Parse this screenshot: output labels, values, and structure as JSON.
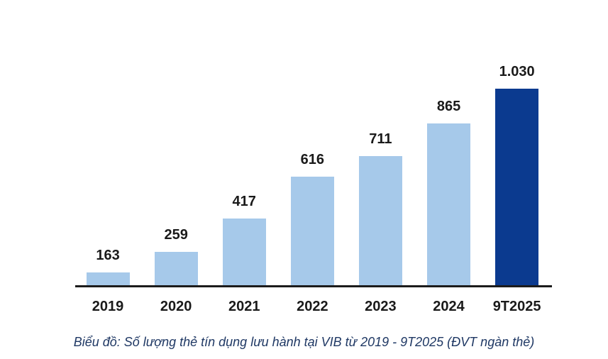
{
  "chart_data": {
    "type": "bar",
    "categories": [
      "2019",
      "2020",
      "2021",
      "2022",
      "2023",
      "2024",
      "9T2025"
    ],
    "values": [
      163,
      259,
      417,
      616,
      711,
      865,
      1030
    ],
    "value_labels": [
      "163",
      "259",
      "417",
      "616",
      "711",
      "865",
      "1.030"
    ],
    "title": "",
    "xlabel": "",
    "ylabel": "",
    "ylim": [
      100,
      1030
    ],
    "grid": false,
    "legend": false,
    "highlight_category": "9T2025",
    "bar_color": "#A6C9EA",
    "highlight_bar_color": "#0B3A8F",
    "axis_color": "#1c1c1c",
    "label_color": "#1a1a1a",
    "caption": "Biểu đồ: Số lượng thẻ tín dụng lưu hành tại VIB từ 2019 - 9T2025 (ĐVT ngàn thẻ)",
    "caption_color": "#1F3864"
  }
}
